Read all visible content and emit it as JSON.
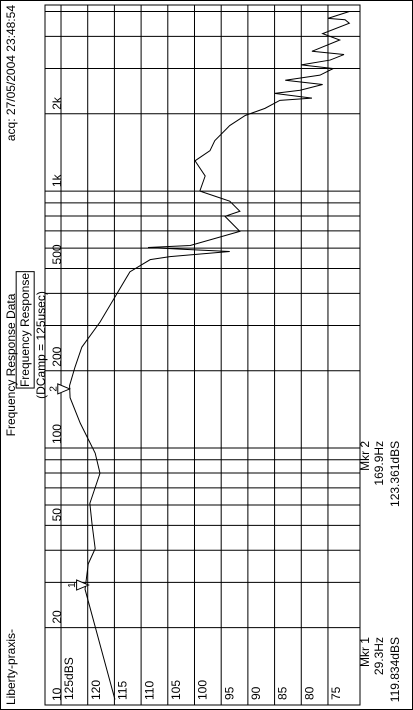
{
  "chart_data": {
    "type": "line",
    "title": "Frequency Response Data",
    "subtitle": "Frequency Response",
    "note": "(DCamp = 125usec)",
    "source": "Liberty-praxis-",
    "timestamp": "acq: 27/05/2004 23:48:54",
    "x_scale": "log",
    "xlim": [
      10,
      5300
    ],
    "xticks": [
      10,
      20,
      50,
      100,
      200,
      500,
      {
        "value": 1000,
        "label": "1k"
      },
      {
        "value": 2000,
        "label": "2k"
      }
    ],
    "x_minor_ticks": [
      30,
      40,
      60,
      70,
      80,
      90,
      300,
      400,
      600,
      700,
      800,
      900,
      3000,
      4000,
      5000
    ],
    "ylim": [
      128,
      69
    ],
    "yticks": [
      {
        "value": 125,
        "label": "125dBS"
      },
      120,
      115,
      110,
      105,
      100,
      95,
      90,
      85,
      80,
      75
    ],
    "grid": true,
    "series": [
      {
        "color": "#000000",
        "x": [
          10.5,
          17.2,
          28.2,
          35.4,
          40.6,
          50.8,
          60.9,
          79.8,
          95.5,
          125,
          157,
          175,
          206,
          247,
          309,
          387,
          485,
          541,
          556,
          582,
          593,
          603,
          614,
          697,
          798,
          835,
          914,
          956,
          1000,
          1145,
          1312,
          1436,
          1572,
          1799,
          1969,
          2099,
          2255,
          2300,
          2400,
          2468,
          2600,
          2700,
          2826,
          3000,
          3100,
          3236,
          3400,
          3500,
          3873,
          4100,
          4500,
          4642,
          4700,
          5000
        ],
        "values": [
          114.9,
          117.7,
          120.5,
          119.9,
          118.6,
          119.2,
          119.6,
          117.7,
          118.6,
          121.4,
          123.3,
          123.4,
          122.4,
          121.1,
          117.7,
          114.9,
          112.1,
          108.3,
          104.6,
          93.4,
          101.8,
          108.7,
          100.8,
          91.5,
          94.3,
          91.5,
          93.4,
          96.2,
          99.0,
          98.0,
          99.9,
          97.1,
          96.2,
          93.4,
          90.5,
          86.8,
          84.0,
          78,
          85,
          80.2,
          76,
          83,
          76.5,
          74,
          80,
          74.6,
          72,
          78,
          72.8,
          76,
          71,
          71.8,
          75,
          71
        ]
      }
    ],
    "markers": [
      {
        "id": "1",
        "name": "Mkr 1",
        "x": 29.3,
        "x_label": "29.3Hz",
        "value": 119.834,
        "value_label": "119.834dBS"
      },
      {
        "id": "2",
        "name": "Mkr 2",
        "x": 169.9,
        "x_label": "169.9Hz",
        "value": 123.361,
        "value_label": "123.361dBS"
      }
    ]
  }
}
